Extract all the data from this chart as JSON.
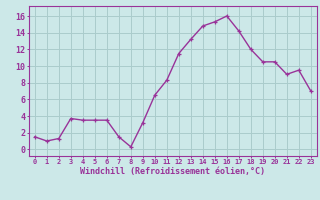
{
  "x": [
    0,
    1,
    2,
    3,
    4,
    5,
    6,
    7,
    8,
    9,
    10,
    11,
    12,
    13,
    14,
    15,
    16,
    17,
    18,
    19,
    20,
    21,
    22,
    23
  ],
  "y": [
    1.5,
    1.0,
    1.3,
    3.7,
    3.5,
    3.5,
    3.5,
    1.5,
    0.3,
    3.2,
    6.5,
    8.3,
    11.5,
    13.2,
    14.8,
    15.3,
    16.0,
    14.2,
    12.0,
    10.5,
    10.5,
    9.0,
    9.5,
    7.0
  ],
  "line_color": "#993399",
  "marker": "+",
  "bg_color": "#cce8e8",
  "grid_color": "#aacccc",
  "xlabel": "Windchill (Refroidissement éolien,°C)",
  "xlabel_color": "#993399",
  "tick_color": "#993399",
  "ylabel_ticks": [
    0,
    2,
    4,
    6,
    8,
    10,
    12,
    14,
    16
  ],
  "xlim": [
    -0.5,
    23.5
  ],
  "ylim": [
    -0.8,
    17.2
  ]
}
